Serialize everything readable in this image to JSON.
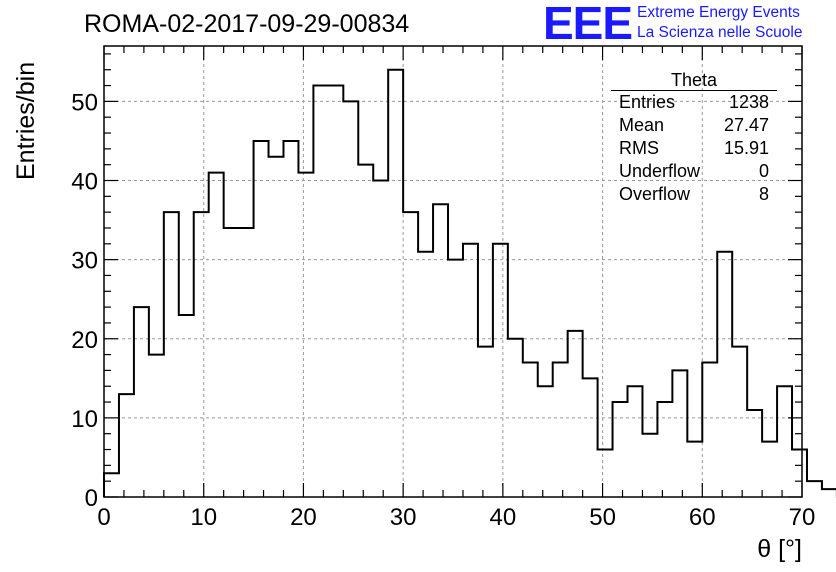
{
  "title": "ROMA-02-2017-09-29-00834",
  "logo": {
    "mark": "EEE",
    "line1": "Extreme Energy Events",
    "line2": "La Scienza nelle Scuole"
  },
  "stats": {
    "name": "Theta",
    "rows": [
      {
        "label": "Entries",
        "value": "1238"
      },
      {
        "label": "Mean",
        "value": "27.47"
      },
      {
        "label": "RMS",
        "value": "15.91"
      },
      {
        "label": "Underflow",
        "value": "0"
      },
      {
        "label": "Overflow",
        "value": "8"
      }
    ]
  },
  "chart_data": {
    "type": "bar",
    "title": "ROMA-02-2017-09-29-00834",
    "xlabel": "θ [°]",
    "ylabel": "Entries/bin",
    "xlim": [
      0,
      70
    ],
    "ylim": [
      0,
      57
    ],
    "grid": true,
    "bin_width": 1.5,
    "x_ticks": [
      0,
      10,
      20,
      30,
      40,
      50,
      60,
      70
    ],
    "y_ticks": [
      0,
      10,
      20,
      30,
      40,
      50
    ],
    "values": [
      3,
      13,
      24,
      18,
      36,
      23,
      36,
      41,
      34,
      34,
      45,
      43,
      45,
      41,
      52,
      52,
      50,
      42,
      40,
      54,
      36,
      31,
      37,
      30,
      32,
      19,
      32,
      20,
      17,
      14,
      17,
      21,
      15,
      6,
      12,
      14,
      8,
      12,
      16,
      7,
      17,
      31,
      19,
      11,
      7,
      14,
      6,
      2,
      1,
      0
    ]
  }
}
